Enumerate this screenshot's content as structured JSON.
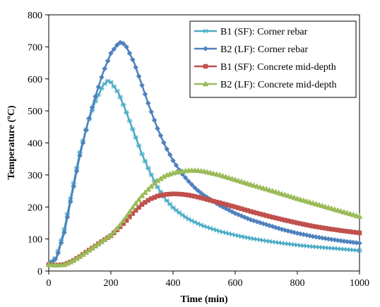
{
  "chart_data": {
    "type": "line",
    "xlabel": "Time (min)",
    "ylabel": "Temperature  (ºC)",
    "xlim": [
      0,
      1000
    ],
    "ylim": [
      0,
      800
    ],
    "xticks": [
      0,
      200,
      400,
      600,
      800,
      1000
    ],
    "yticks": [
      0,
      100,
      200,
      300,
      400,
      500,
      600,
      700,
      800
    ],
    "grid": false,
    "legend_position": "top-right",
    "series": [
      {
        "name": "B1 (SF): Corner rebar",
        "color": "#4bacc6",
        "marker": "asterisk",
        "x": [
          0,
          25,
          50,
          75,
          100,
          125,
          150,
          175,
          190,
          200,
          225,
          250,
          275,
          300,
          325,
          350,
          375,
          400,
          425,
          450,
          475,
          500,
          550,
          600,
          650,
          700,
          750,
          800,
          850,
          900,
          950,
          1000
        ],
        "y": [
          20,
          45,
          130,
          250,
          370,
          460,
          530,
          580,
          594,
          590,
          555,
          495,
          430,
          365,
          310,
          262,
          225,
          198,
          178,
          162,
          150,
          140,
          124,
          112,
          102,
          94,
          87,
          81,
          76,
          72,
          68,
          64
        ]
      },
      {
        "name": "B2 (LF): Corner rebar",
        "color": "#4f81bd",
        "marker": "diamond",
        "x": [
          0,
          25,
          50,
          75,
          100,
          125,
          150,
          175,
          200,
          225,
          235,
          250,
          275,
          300,
          325,
          350,
          375,
          400,
          425,
          450,
          475,
          500,
          550,
          600,
          650,
          700,
          750,
          800,
          850,
          900,
          950,
          1000
        ],
        "y": [
          20,
          40,
          120,
          240,
          360,
          460,
          545,
          620,
          680,
          712,
          715,
          700,
          650,
          580,
          510,
          445,
          390,
          345,
          308,
          280,
          255,
          236,
          205,
          180,
          160,
          145,
          130,
          118,
          108,
          100,
          93,
          87
        ]
      },
      {
        "name": "B1 (SF): Concrete mid-depth",
        "color": "#c0504d",
        "marker": "square",
        "x": [
          0,
          25,
          50,
          75,
          100,
          125,
          150,
          175,
          200,
          225,
          250,
          275,
          300,
          325,
          350,
          375,
          400,
          425,
          450,
          475,
          500,
          550,
          600,
          650,
          700,
          750,
          800,
          850,
          900,
          950,
          1000
        ],
        "y": [
          20,
          18,
          20,
          30,
          45,
          62,
          78,
          95,
          110,
          133,
          158,
          185,
          208,
          224,
          234,
          239,
          241,
          240,
          237,
          232,
          226,
          213,
          200,
          186,
          173,
          161,
          150,
          140,
          132,
          125,
          119
        ]
      },
      {
        "name": "B2 (LF): Concrete mid-depth",
        "color": "#9bbb59",
        "marker": "triangle",
        "x": [
          0,
          25,
          50,
          75,
          100,
          125,
          150,
          175,
          200,
          225,
          250,
          275,
          300,
          325,
          350,
          375,
          400,
          425,
          450,
          475,
          500,
          550,
          600,
          650,
          700,
          750,
          800,
          850,
          900,
          950,
          1000
        ],
        "y": [
          20,
          18,
          20,
          30,
          45,
          62,
          78,
          95,
          112,
          138,
          170,
          205,
          235,
          260,
          282,
          298,
          306,
          311,
          314,
          314,
          311,
          300,
          285,
          270,
          256,
          241,
          226,
          212,
          198,
          184,
          170
        ]
      }
    ]
  }
}
